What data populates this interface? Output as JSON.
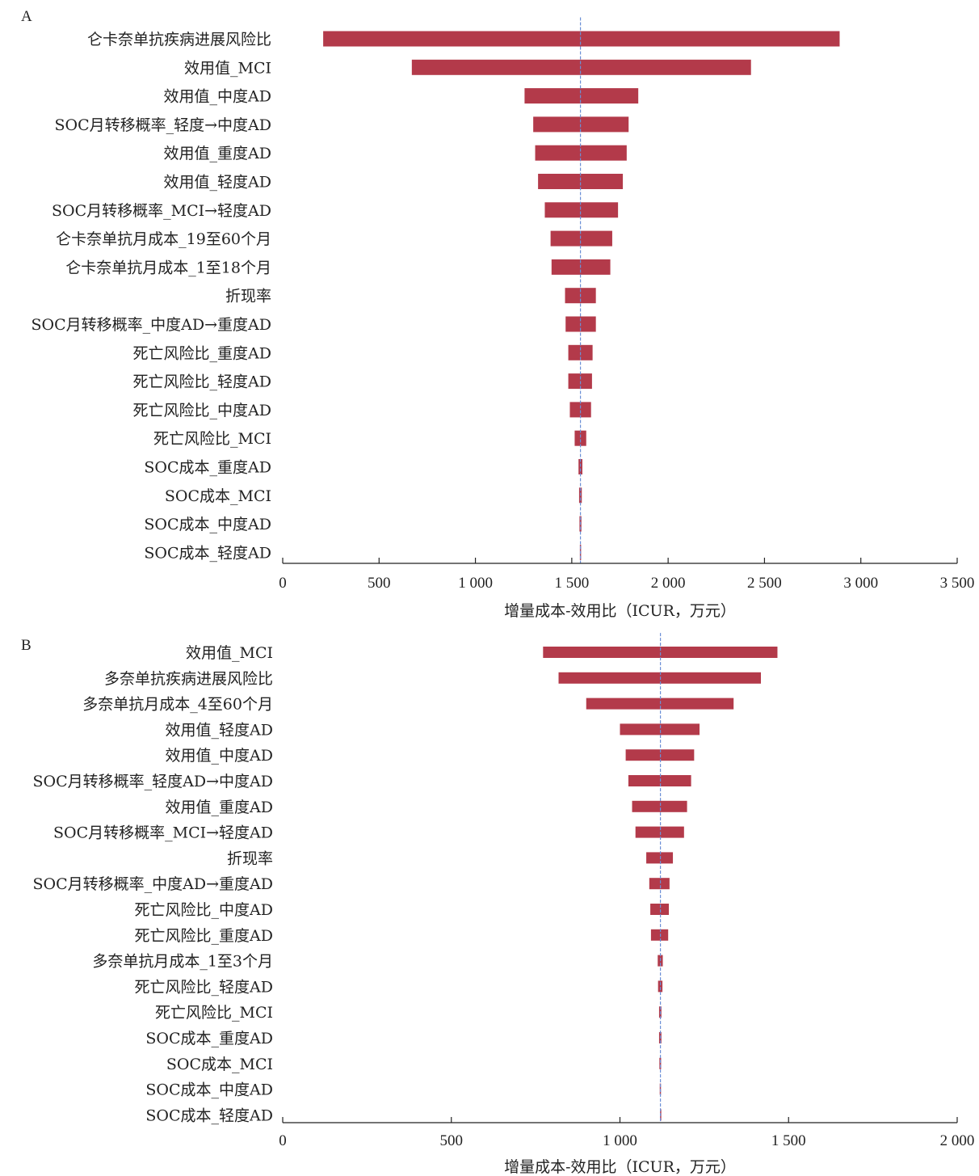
{
  "chart_data": [
    {
      "type": "bar",
      "orientation": "horizontal",
      "chart_style": "tornado",
      "panel_label": "A",
      "xlabel": "增量成本-效用比（ICUR，万元）",
      "xlim": [
        0,
        3500
      ],
      "xticks": [
        0,
        500,
        1000,
        1500,
        2000,
        2500,
        3000,
        3500
      ],
      "xtick_labels": [
        "0",
        "500",
        "1 000",
        "1 500",
        "2 000",
        "2 500",
        "3 000",
        "3 500"
      ],
      "base_value": 1545,
      "bar_color": "#b33a4a",
      "baseline_color": "#6b8fd6",
      "categories": [
        "仑卡奈单抗疾病进展风险比",
        "效用值_MCI",
        "效用值_中度AD",
        "SOC月转移概率_轻度→中度AD",
        "效用值_重度AD",
        "效用值_轻度AD",
        "SOC月转移概率_MCI→轻度AD",
        "仑卡奈单抗月成本_19至60个月",
        "仑卡奈单抗月成本_1至18个月",
        "折现率",
        "SOC月转移概率_中度AD→重度AD",
        "死亡风险比_重度AD",
        "死亡风险比_轻度AD",
        "死亡风险比_中度AD",
        "死亡风险比_MCI",
        "SOC成本_重度AD",
        "SOC成本_MCI",
        "SOC成本_中度AD",
        "SOC成本_轻度AD"
      ],
      "ranges": [
        [
          210,
          2890
        ],
        [
          670,
          2430
        ],
        [
          1255,
          1845
        ],
        [
          1300,
          1795
        ],
        [
          1310,
          1785
        ],
        [
          1325,
          1765
        ],
        [
          1360,
          1740
        ],
        [
          1390,
          1710
        ],
        [
          1395,
          1700
        ],
        [
          1465,
          1625
        ],
        [
          1468,
          1625
        ],
        [
          1482,
          1608
        ],
        [
          1482,
          1605
        ],
        [
          1490,
          1600
        ],
        [
          1515,
          1575
        ],
        [
          1535,
          1555
        ],
        [
          1538,
          1552
        ],
        [
          1540,
          1550
        ],
        [
          1542,
          1548
        ]
      ]
    },
    {
      "type": "bar",
      "orientation": "horizontal",
      "chart_style": "tornado",
      "panel_label": "B",
      "xlabel": "增量成本-效用比（ICUR，万元）",
      "xlim": [
        0,
        2000
      ],
      "xticks": [
        0,
        500,
        1000,
        1500,
        2000
      ],
      "xtick_labels": [
        "0",
        "500",
        "1 000",
        "1 500",
        "2 000"
      ],
      "base_value": 1120,
      "bar_color": "#b33a4a",
      "baseline_color": "#6b8fd6",
      "categories": [
        "效用值_MCI",
        "多奈单抗疾病进展风险比",
        "多奈单抗月成本_4至60个月",
        "效用值_轻度AD",
        "效用值_中度AD",
        "SOC月转移概率_轻度AD→中度AD",
        "效用值_重度AD",
        "SOC月转移概率_MCI→轻度AD",
        "折现率",
        "SOC月转移概率_中度AD→重度AD",
        "死亡风险比_中度AD",
        "死亡风险比_重度AD",
        "多奈单抗月成本_1至3个月",
        "死亡风险比_轻度AD",
        "死亡风险比_MCI",
        "SOC成本_重度AD",
        "SOC成本_MCI",
        "SOC成本_中度AD",
        "SOC成本_轻度AD"
      ],
      "ranges": [
        [
          772,
          1467
        ],
        [
          818,
          1418
        ],
        [
          900,
          1337
        ],
        [
          1000,
          1236
        ],
        [
          1017,
          1220
        ],
        [
          1025,
          1211
        ],
        [
          1036,
          1199
        ],
        [
          1046,
          1190
        ],
        [
          1078,
          1157
        ],
        [
          1087,
          1147
        ],
        [
          1090,
          1145
        ],
        [
          1092,
          1143
        ],
        [
          1112,
          1127
        ],
        [
          1113,
          1126
        ],
        [
          1116,
          1123
        ],
        [
          1116,
          1123
        ],
        [
          1117,
          1122
        ],
        [
          1118,
          1121
        ],
        [
          1119,
          1121
        ]
      ]
    }
  ]
}
